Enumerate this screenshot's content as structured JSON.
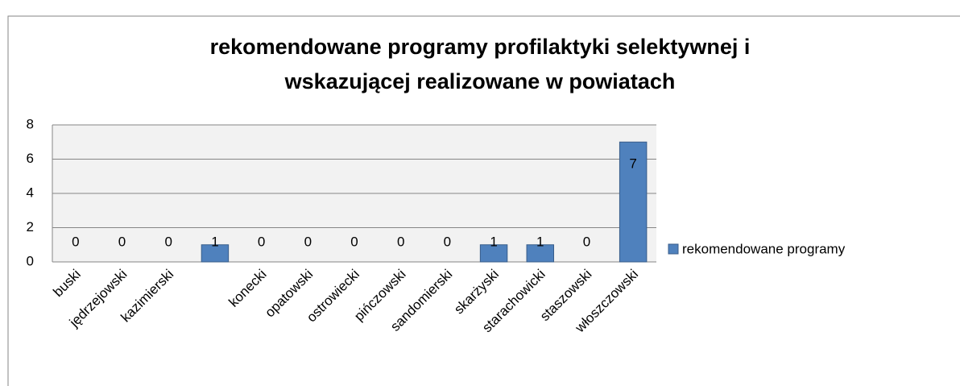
{
  "chart_data": {
    "type": "bar",
    "title": [
      "rekomendowane programy profilaktyki selektywnej i",
      "wskazującej realizowane w powiatach"
    ],
    "categories": [
      "buski",
      "jędrzejowski",
      "kazimierski",
      null,
      "konecki",
      "opatowski",
      "ostrowiecki",
      "pińczowski",
      "sandomierski",
      "skarżyski",
      "starachowicki",
      "staszowski",
      "włoszczowski"
    ],
    "series": [
      {
        "name": "rekomendowane programy",
        "color": "#4f81bd",
        "values": [
          0,
          0,
          0,
          1,
          0,
          0,
          0,
          0,
          0,
          1,
          1,
          0,
          7
        ]
      }
    ],
    "ylim": [
      0,
      8
    ],
    "yticks": [
      0,
      2,
      4,
      6,
      8
    ],
    "grid": true,
    "legend": "right",
    "data_labels": true
  }
}
